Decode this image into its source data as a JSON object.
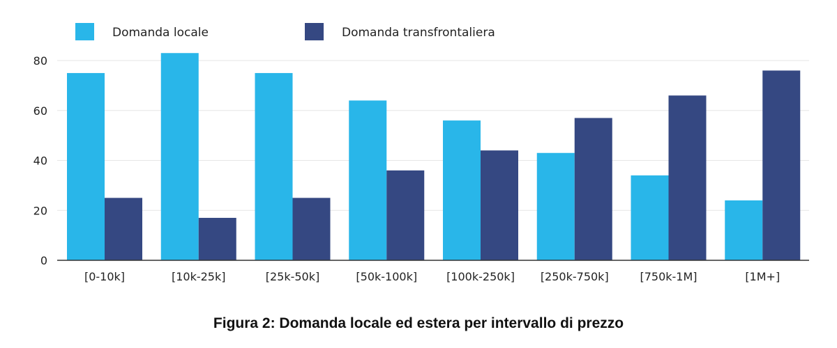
{
  "chart_data": {
    "type": "bar",
    "title": "",
    "caption": "Figura 2: Domanda locale ed estera per intervallo di prezzo",
    "xlabel": "",
    "ylabel": "",
    "categories": [
      "[0-10k]",
      "[10k-25k]",
      "[25k-50k]",
      "[50k-100k]",
      "[100k-250k]",
      "[250k-750k]",
      "[750k-1M]",
      "[1M+]"
    ],
    "series": [
      {
        "name": "Domanda locale",
        "color": "#29b6e9",
        "values": [
          75,
          83,
          75,
          64,
          56,
          43,
          34,
          24
        ]
      },
      {
        "name": "Domanda transfrontaliera",
        "color": "#354882",
        "values": [
          25,
          17,
          25,
          36,
          44,
          57,
          66,
          76
        ]
      }
    ],
    "ylim": [
      0,
      80
    ],
    "yticks": [
      0,
      20,
      40,
      60,
      80
    ],
    "grid": true,
    "legend_position": "top-left"
  }
}
